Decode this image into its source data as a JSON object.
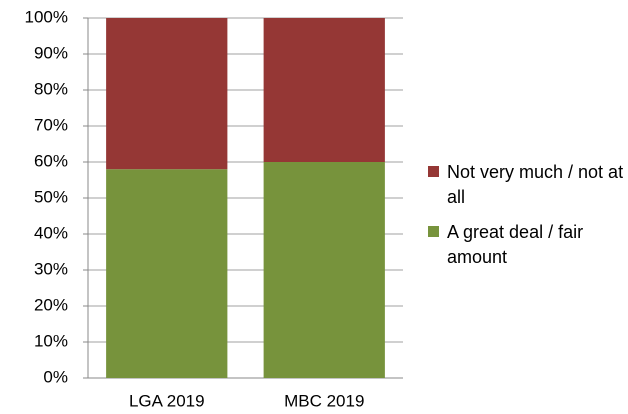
{
  "chart_data": {
    "type": "stacked_bar",
    "categories": [
      "LGA 2019",
      "MBC 2019"
    ],
    "series": [
      {
        "name": "A great deal / fair amount",
        "color": "#77933c",
        "values": [
          58,
          60
        ]
      },
      {
        "name": "Not very much / not at all",
        "color": "#953735",
        "values": [
          42,
          40
        ]
      }
    ],
    "ylim": [
      0,
      100
    ],
    "yticks": [
      {
        "value": 0,
        "label": "0%"
      },
      {
        "value": 10,
        "label": "10%"
      },
      {
        "value": 20,
        "label": "20%"
      },
      {
        "value": 30,
        "label": "30%"
      },
      {
        "value": 40,
        "label": "40%"
      },
      {
        "value": 50,
        "label": "50%"
      },
      {
        "value": 60,
        "label": "60%"
      },
      {
        "value": 70,
        "label": "70%"
      },
      {
        "value": 80,
        "label": "80%"
      },
      {
        "value": 90,
        "label": "90%"
      },
      {
        "value": 100,
        "label": "100%"
      }
    ],
    "grid": true,
    "legend": "right"
  }
}
